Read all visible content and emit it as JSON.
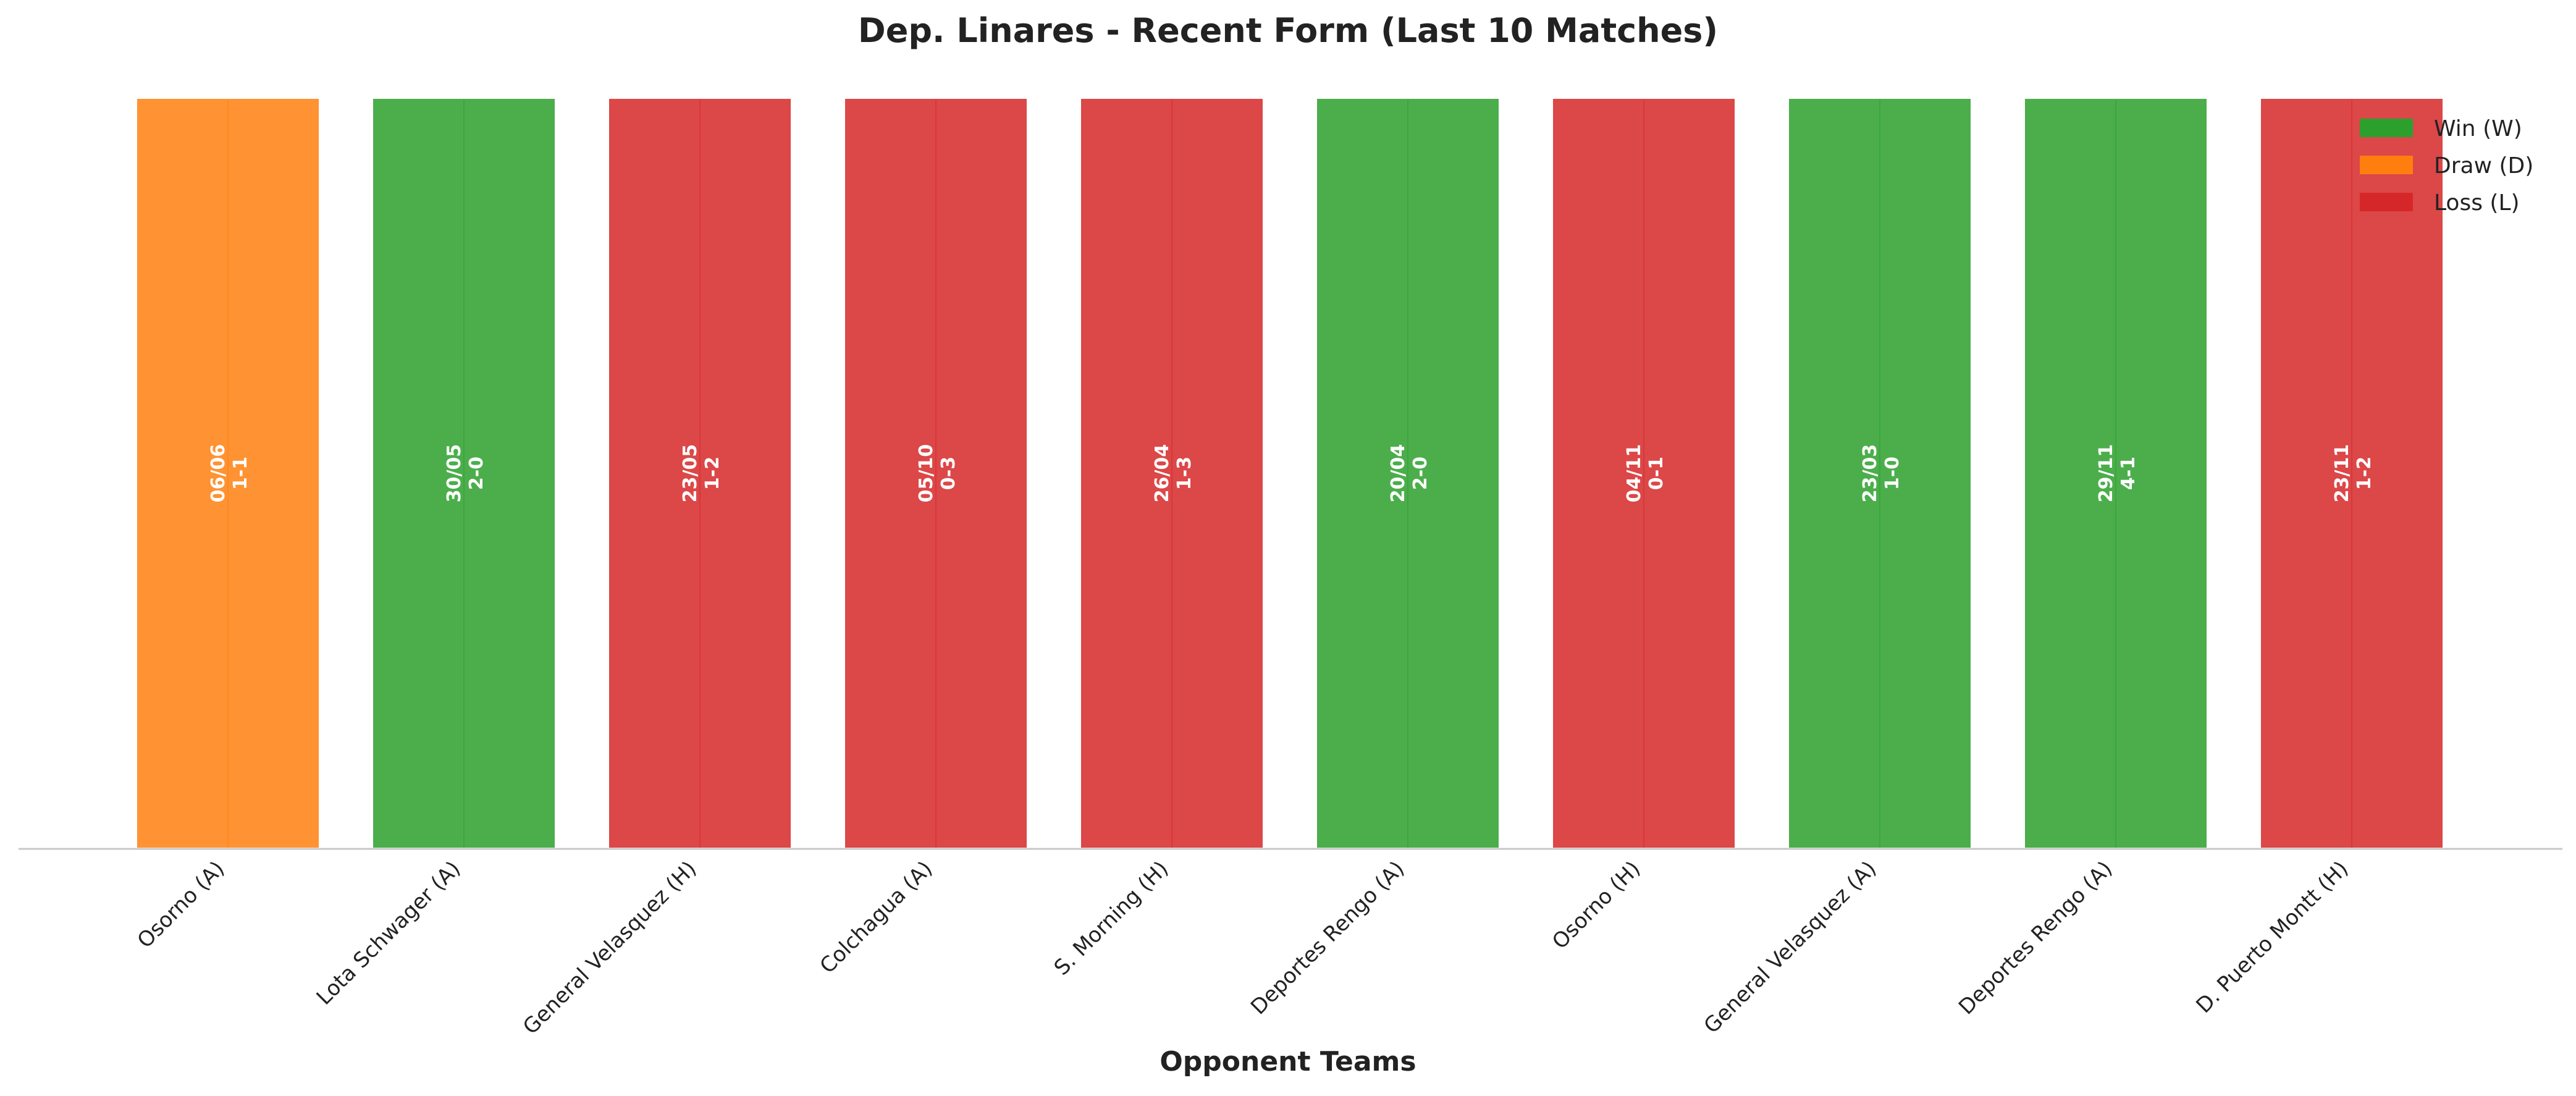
{
  "chart_data": {
    "type": "bar",
    "title": "Dep. Linares - Recent Form (Last 10 Matches)",
    "xlabel": "Opponent Teams",
    "ylabel": "",
    "categories": [
      "Osorno (A)",
      "Lota Schwager (A)",
      "General Velasquez (H)",
      "Colchagua (A)",
      "S. Morning (H)",
      "Deportes Rengo (A)",
      "Osorno (H)",
      "General Velasquez (A)",
      "Deportes Rengo (A)",
      "D. Puerto Montt (H)"
    ],
    "values": [
      1,
      1,
      1,
      1,
      1,
      1,
      1,
      1,
      1,
      1
    ],
    "results": [
      "D",
      "W",
      "L",
      "L",
      "L",
      "W",
      "L",
      "W",
      "W",
      "L"
    ],
    "dates": [
      "06/06",
      "30/05",
      "23/05",
      "05/10",
      "26/04",
      "20/04",
      "04/11",
      "23/03",
      "29/11",
      "23/11"
    ],
    "scores": [
      "1-1",
      "2-0",
      "1-2",
      "0-3",
      "1-3",
      "2-0",
      "0-1",
      "1-0",
      "4-1",
      "1-2"
    ],
    "ylim": [
      0,
      1
    ],
    "grid": false,
    "legend": {
      "placement": "top-right",
      "entries": [
        {
          "key": "W",
          "label": "Win (W)",
          "color": "#2ca02c"
        },
        {
          "key": "D",
          "label": "Draw (D)",
          "color": "#ff7f0e"
        },
        {
          "key": "L",
          "label": "Loss (L)",
          "color": "#d62728"
        }
      ]
    }
  }
}
